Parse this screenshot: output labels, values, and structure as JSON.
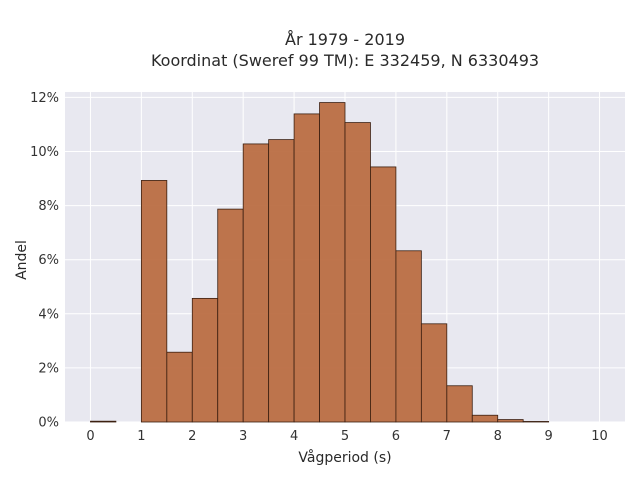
{
  "chart_data": {
    "type": "bar",
    "title": "År 1979 - 2019",
    "subtitle": "Koordinat (Sweref 99 TM): E 332459, N 6330493",
    "xlabel": "Vågperiod (s)",
    "ylabel": "Andel",
    "xlim": [
      -0.5,
      10.5
    ],
    "ylim": [
      0,
      0.122
    ],
    "xticks": [
      0,
      1,
      2,
      3,
      4,
      5,
      6,
      7,
      8,
      9,
      10
    ],
    "xtick_labels": [
      "0",
      "1",
      "2",
      "3",
      "4",
      "5",
      "6",
      "7",
      "8",
      "9",
      "10"
    ],
    "yticks": [
      0,
      0.02,
      0.04,
      0.06,
      0.08,
      0.1,
      0.12
    ],
    "ytick_labels": [
      "0%",
      "2%",
      "4%",
      "6%",
      "8%",
      "10%",
      "12%"
    ],
    "bin_width": 0.5,
    "bins": [
      {
        "x0": 0.0,
        "x1": 0.5,
        "value": 0.0003
      },
      {
        "x0": 0.5,
        "x1": 1.0,
        "value": 0.0
      },
      {
        "x0": 1.0,
        "x1": 1.5,
        "value": 0.0893
      },
      {
        "x0": 1.5,
        "x1": 2.0,
        "value": 0.0258
      },
      {
        "x0": 2.0,
        "x1": 2.5,
        "value": 0.0457
      },
      {
        "x0": 2.5,
        "x1": 3.0,
        "value": 0.0787
      },
      {
        "x0": 3.0,
        "x1": 3.5,
        "value": 0.1028
      },
      {
        "x0": 3.5,
        "x1": 4.0,
        "value": 0.1044
      },
      {
        "x0": 4.0,
        "x1": 4.5,
        "value": 0.1139
      },
      {
        "x0": 4.5,
        "x1": 5.0,
        "value": 0.1181
      },
      {
        "x0": 5.0,
        "x1": 5.5,
        "value": 0.1107
      },
      {
        "x0": 5.5,
        "x1": 6.0,
        "value": 0.0943
      },
      {
        "x0": 6.0,
        "x1": 6.5,
        "value": 0.0633
      },
      {
        "x0": 6.5,
        "x1": 7.0,
        "value": 0.0363
      },
      {
        "x0": 7.0,
        "x1": 7.5,
        "value": 0.0134
      },
      {
        "x0": 7.5,
        "x1": 8.0,
        "value": 0.0025
      },
      {
        "x0": 8.0,
        "x1": 8.5,
        "value": 0.0009
      },
      {
        "x0": 8.5,
        "x1": 9.0,
        "value": 0.0002
      }
    ],
    "grid": true,
    "legend": "none",
    "colors": {
      "bar_fill": "#b9693e",
      "bar_edge": "#3b1f10",
      "plot_bg": "#e8e8f0",
      "grid": "#ffffff"
    }
  }
}
